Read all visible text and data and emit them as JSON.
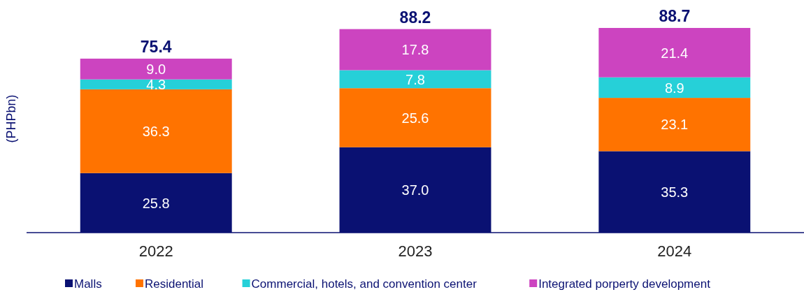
{
  "chart_data": {
    "type": "bar",
    "stacked": true,
    "ylabel": "(PHPbn)",
    "categories": [
      "2022",
      "2023",
      "2024"
    ],
    "series": [
      {
        "name": "Malls",
        "color": "#0a1172",
        "values": [
          25.8,
          37.0,
          35.3
        ],
        "value_labels": [
          "25.8",
          "37.0",
          "35.3"
        ]
      },
      {
        "name": "Residential",
        "color": "#ff7300",
        "values": [
          36.3,
          25.6,
          23.1
        ],
        "value_labels": [
          "36.3",
          "25.6",
          "23.1"
        ]
      },
      {
        "name": "Commercial, hotels, and convention center",
        "color": "#26d0d8",
        "values": [
          4.3,
          7.8,
          8.9
        ],
        "value_labels": [
          "4.3",
          "7.8",
          "8.9"
        ]
      },
      {
        "name": "Integrated porperty development",
        "color": "#cc44c0",
        "values": [
          9.0,
          17.8,
          21.4
        ],
        "value_labels": [
          "9.0",
          "17.8",
          "21.4"
        ]
      }
    ],
    "totals": [
      "75.4",
      "88.2",
      "88.7"
    ],
    "legend": "bottom"
  }
}
